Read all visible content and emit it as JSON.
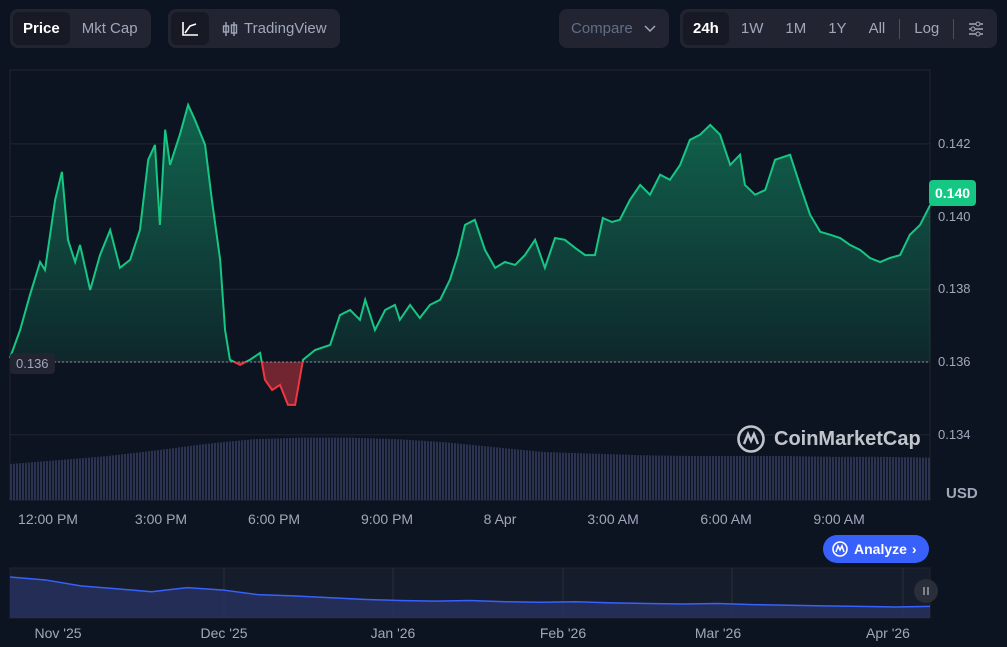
{
  "toolbar": {
    "metric_tabs": [
      {
        "label": "Price",
        "active": true
      },
      {
        "label": "Mkt Cap",
        "active": false
      }
    ],
    "chart_type": {
      "line_icon": "line-chart-icon",
      "tradingview_icon": "candlestick-icon",
      "tradingview_label": "TradingView"
    },
    "compare_label": "Compare",
    "ranges": [
      {
        "label": "24h",
        "active": true
      },
      {
        "label": "1W"
      },
      {
        "label": "1M"
      },
      {
        "label": "1Y"
      },
      {
        "label": "All"
      }
    ],
    "log_label": "Log",
    "settings_icon": "sliders-icon"
  },
  "watermark": "CoinMarketCap",
  "analyze_label": "Analyze",
  "currency": "USD",
  "current_price_label": "0.140",
  "open_price_label": "0.136",
  "colors": {
    "up": "#16c784",
    "down": "#ea3943",
    "accent": "#3861fb",
    "bg": "#0d1421"
  },
  "chart_data": {
    "type": "line",
    "title": "",
    "ylabel": "USD",
    "y_ticks": [
      "0.142",
      "0.140",
      "0.138",
      "0.136",
      "0.134"
    ],
    "y_tick_values": [
      0.142,
      0.14,
      0.138,
      0.136,
      0.134
    ],
    "x_ticks": [
      "12:00 PM",
      "3:00 PM",
      "6:00 PM",
      "9:00 PM",
      "8 Apr",
      "3:00 AM",
      "6:00 AM",
      "9:00 AM"
    ],
    "x_tick_hours": [
      0,
      3,
      6,
      9,
      12,
      15,
      18,
      21
    ],
    "baseline": 0.136,
    "x_unit": "hours from 12:00 PM",
    "points": [
      [
        -1.01,
        0.13611
      ],
      [
        -0.74,
        0.13688
      ],
      [
        -0.48,
        0.13784
      ],
      [
        -0.21,
        0.13875
      ],
      [
        -0.08,
        0.13853
      ],
      [
        0.19,
        0.14046
      ],
      [
        0.37,
        0.14123
      ],
      [
        0.53,
        0.13936
      ],
      [
        0.72,
        0.13875
      ],
      [
        0.85,
        0.13922
      ],
      [
        1.12,
        0.13798
      ],
      [
        1.38,
        0.13894
      ],
      [
        1.65,
        0.13963
      ],
      [
        1.91,
        0.13859
      ],
      [
        2.18,
        0.13881
      ],
      [
        2.44,
        0.13963
      ],
      [
        2.66,
        0.14156
      ],
      [
        2.84,
        0.14197
      ],
      [
        2.97,
        0.13977
      ],
      [
        3.11,
        0.14239
      ],
      [
        3.24,
        0.14142
      ],
      [
        3.5,
        0.14225
      ],
      [
        3.72,
        0.14307
      ],
      [
        3.9,
        0.14266
      ],
      [
        4.17,
        0.14197
      ],
      [
        4.35,
        0.14046
      ],
      [
        4.57,
        0.13881
      ],
      [
        4.7,
        0.13688
      ],
      [
        4.83,
        0.13606
      ],
      [
        5.1,
        0.13592
      ],
      [
        5.36,
        0.13606
      ],
      [
        5.63,
        0.13625
      ],
      [
        5.76,
        0.13551
      ],
      [
        5.95,
        0.13523
      ],
      [
        6.16,
        0.13537
      ],
      [
        6.37,
        0.13482
      ],
      [
        6.56,
        0.13482
      ],
      [
        6.77,
        0.13606
      ],
      [
        7.09,
        0.13633
      ],
      [
        7.49,
        0.13647
      ],
      [
        7.75,
        0.13729
      ],
      [
        8.02,
        0.13743
      ],
      [
        8.28,
        0.13716
      ],
      [
        8.42,
        0.13771
      ],
      [
        8.68,
        0.13688
      ],
      [
        8.95,
        0.13743
      ],
      [
        9.21,
        0.13757
      ],
      [
        9.34,
        0.13716
      ],
      [
        9.61,
        0.13757
      ],
      [
        9.87,
        0.13721
      ],
      [
        10.14,
        0.13757
      ],
      [
        10.41,
        0.13771
      ],
      [
        10.67,
        0.13826
      ],
      [
        10.88,
        0.13894
      ],
      [
        11.07,
        0.13977
      ],
      [
        11.33,
        0.13991
      ],
      [
        11.6,
        0.13908
      ],
      [
        11.87,
        0.13859
      ],
      [
        12.13,
        0.13875
      ],
      [
        12.4,
        0.13867
      ],
      [
        12.66,
        0.13894
      ],
      [
        12.93,
        0.13936
      ],
      [
        13.19,
        0.13859
      ],
      [
        13.46,
        0.13941
      ],
      [
        13.72,
        0.13936
      ],
      [
        13.99,
        0.13914
      ],
      [
        14.26,
        0.13894
      ],
      [
        14.52,
        0.13894
      ],
      [
        14.73,
        0.13996
      ],
      [
        14.97,
        0.13985
      ],
      [
        15.18,
        0.13991
      ],
      [
        15.45,
        0.14046
      ],
      [
        15.72,
        0.14087
      ],
      [
        15.98,
        0.1406
      ],
      [
        16.25,
        0.14115
      ],
      [
        16.51,
        0.14101
      ],
      [
        16.78,
        0.14142
      ],
      [
        17.04,
        0.14211
      ],
      [
        17.31,
        0.14225
      ],
      [
        17.58,
        0.14252
      ],
      [
        17.84,
        0.14225
      ],
      [
        18.11,
        0.14142
      ],
      [
        18.37,
        0.1417
      ],
      [
        18.5,
        0.14087
      ],
      [
        18.77,
        0.1406
      ],
      [
        19.04,
        0.14073
      ],
      [
        19.3,
        0.14156
      ],
      [
        19.7,
        0.1417
      ],
      [
        19.96,
        0.14087
      ],
      [
        20.23,
        0.14005
      ],
      [
        20.5,
        0.13958
      ],
      [
        20.76,
        0.1395
      ],
      [
        21.03,
        0.13941
      ],
      [
        21.29,
        0.13922
      ],
      [
        21.56,
        0.13908
      ],
      [
        21.82,
        0.13886
      ],
      [
        22.09,
        0.13875
      ],
      [
        22.35,
        0.13886
      ],
      [
        22.62,
        0.13894
      ],
      [
        22.88,
        0.1395
      ],
      [
        23.15,
        0.13977
      ],
      [
        23.42,
        0.14032
      ]
    ],
    "volume_profile": [
      0.45,
      0.5,
      0.55,
      0.62,
      0.7,
      0.76,
      0.78,
      0.78,
      0.76,
      0.72,
      0.66,
      0.6,
      0.58,
      0.56,
      0.55,
      0.55,
      0.55,
      0.54,
      0.54,
      0.53
    ],
    "navigator": {
      "labels": [
        "Nov '25",
        "Dec '25",
        "Jan '26",
        "Feb '26",
        "Mar '26",
        "Apr '26"
      ],
      "values": [
        0.19,
        0.185,
        0.175,
        0.17,
        0.165,
        0.172,
        0.168,
        0.16,
        0.158,
        0.155,
        0.152,
        0.15,
        0.149,
        0.15,
        0.148,
        0.147,
        0.148,
        0.146,
        0.145,
        0.144,
        0.145,
        0.143,
        0.142,
        0.141,
        0.14,
        0.139,
        0.14
      ]
    }
  }
}
